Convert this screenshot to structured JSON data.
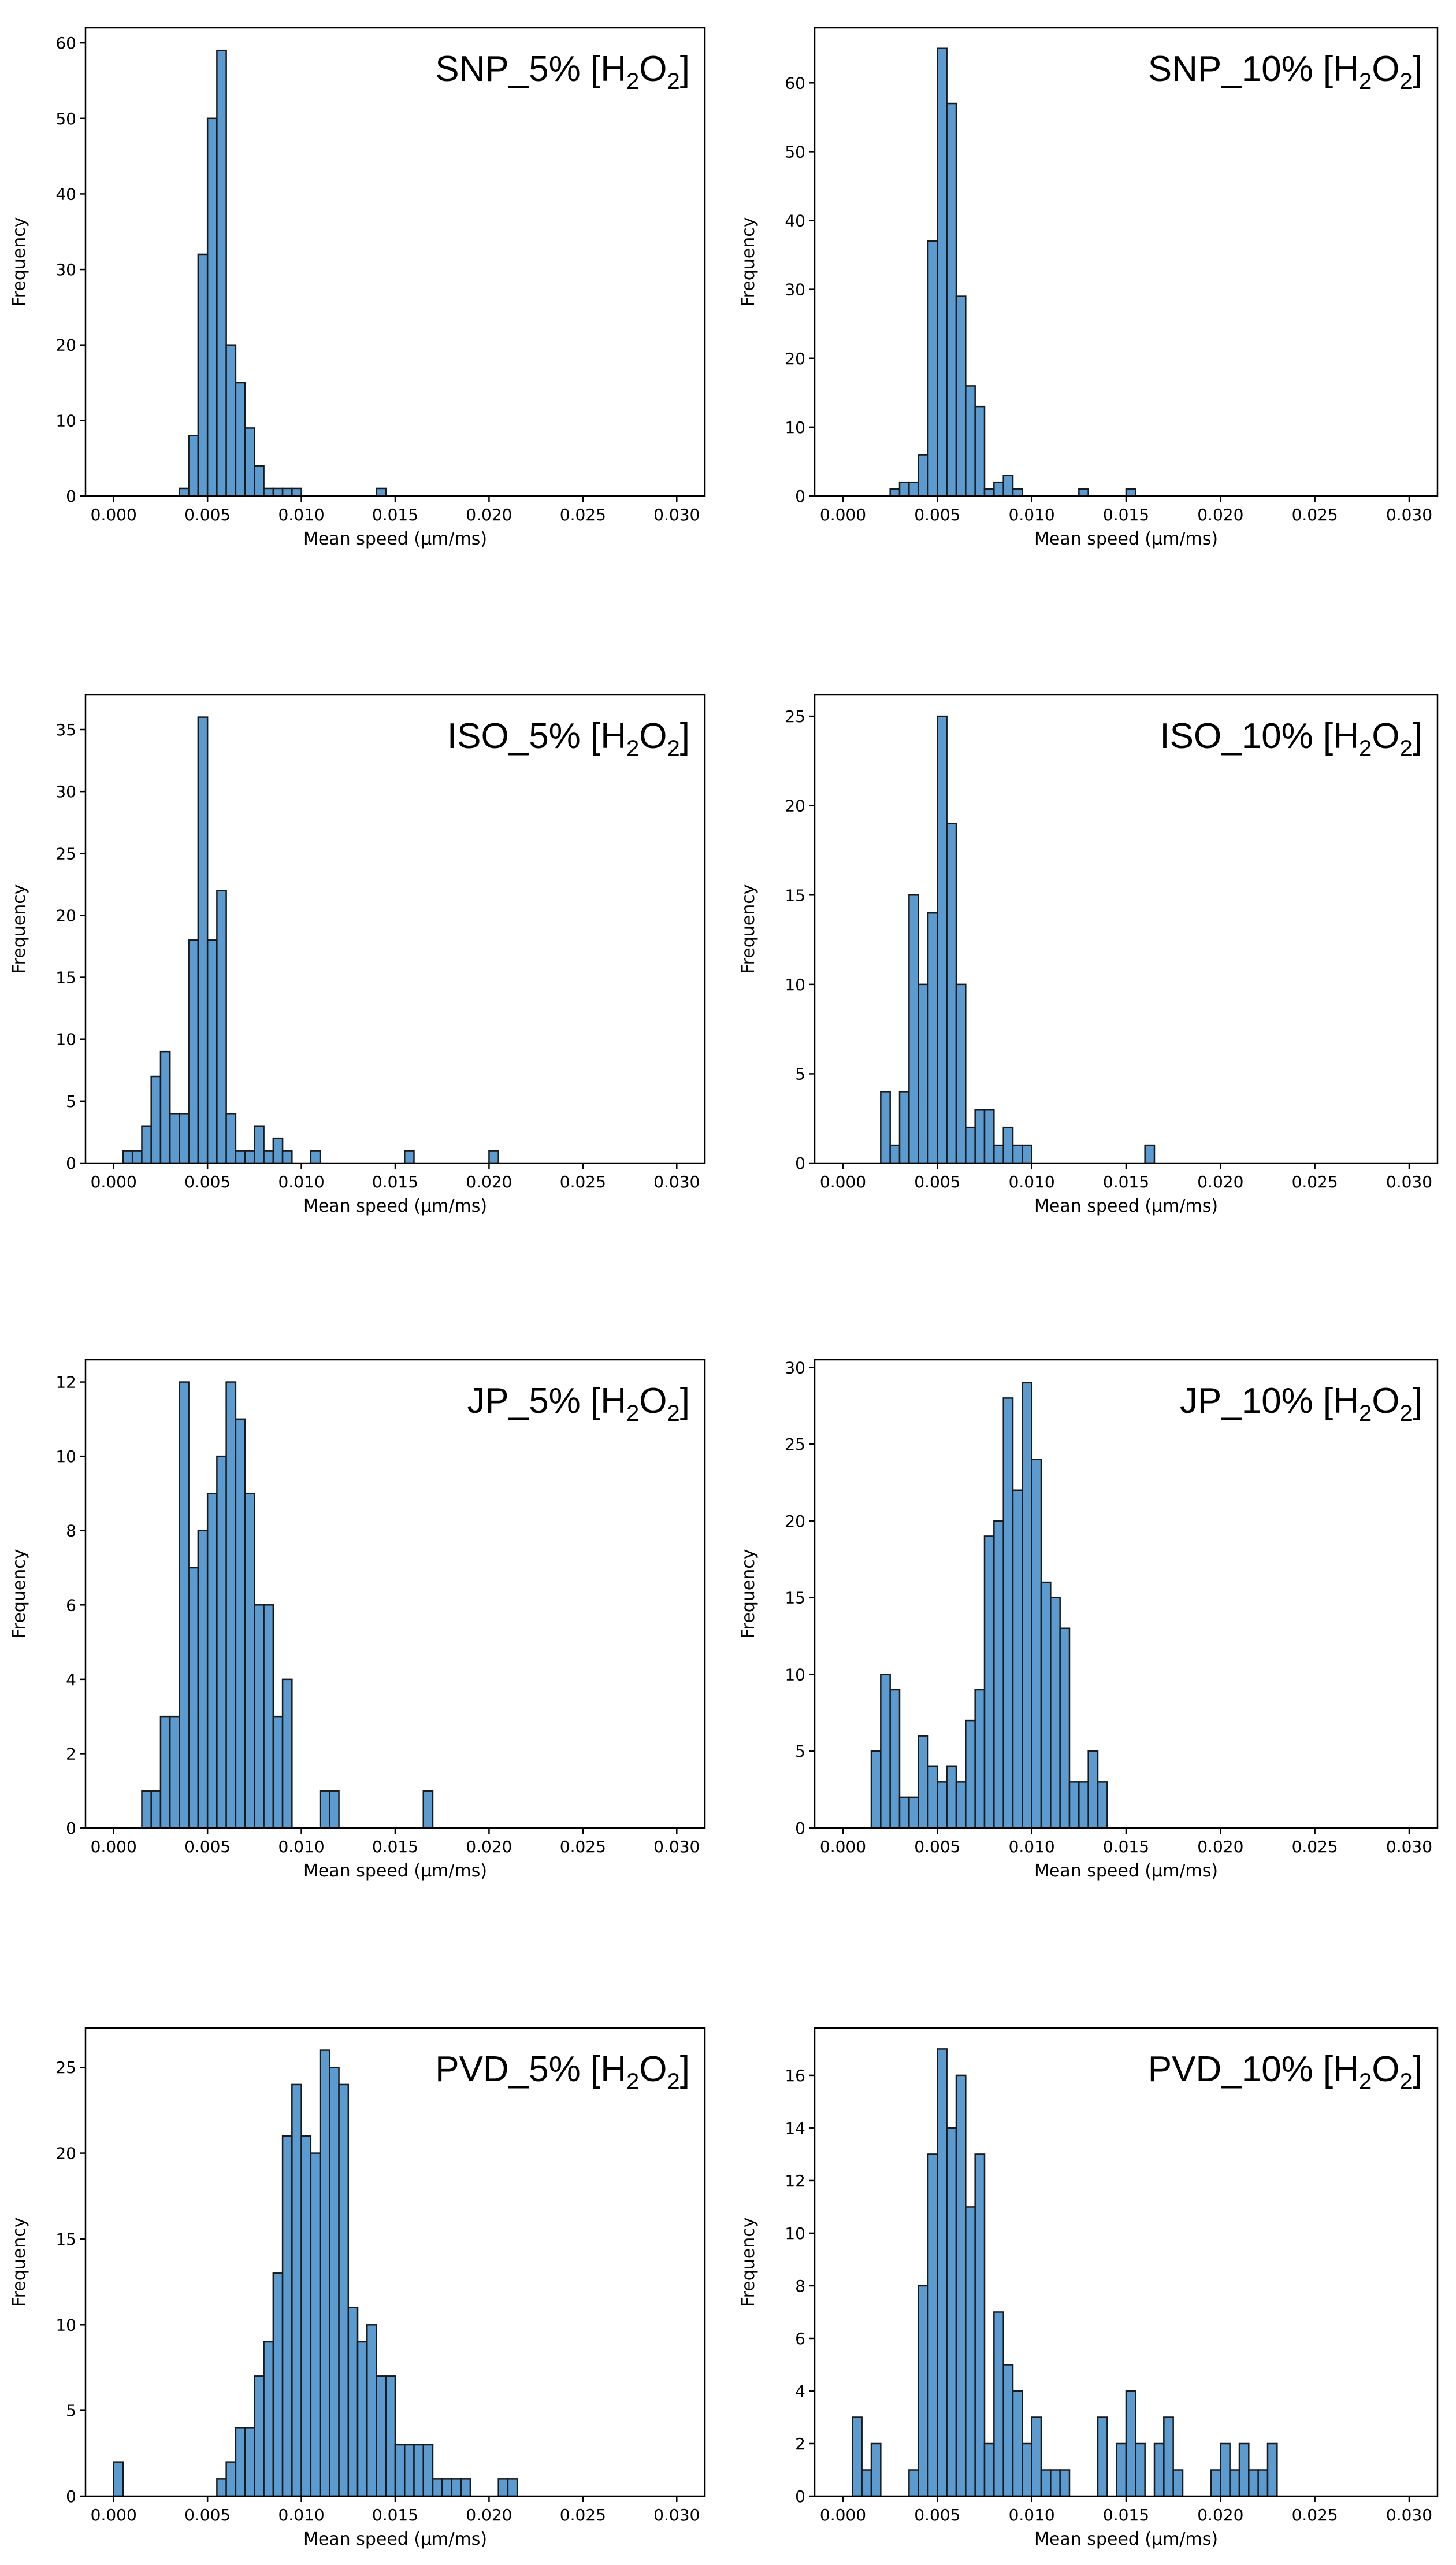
{
  "figure": {
    "colors": {
      "bar_fill": "#5b9bd0",
      "bar_edge": "#1a1a1a"
    }
  },
  "chart_data": [
    {
      "type": "bar",
      "panel": "SNP_5%",
      "title": {
        "main": "SNP_5% [H",
        "sub1": "2",
        "mid": "O",
        "sub2": "2",
        "end": "]"
      },
      "xlabel": "Mean speed (μm/ms)",
      "ylabel": "Frequency",
      "xlim": [
        -0.0015,
        0.0315
      ],
      "ylim": [
        0,
        62
      ],
      "xticks": [
        0.0,
        0.005,
        0.01,
        0.015,
        0.02,
        0.025,
        0.03
      ],
      "xtick_labels": [
        "0.000",
        "0.005",
        "0.010",
        "0.015",
        "0.020",
        "0.025",
        "0.030"
      ],
      "yticks": [
        0,
        10,
        20,
        30,
        40,
        50,
        60
      ],
      "bin_width": 0.0005,
      "bin_starts": [
        0.0035,
        0.004,
        0.0045,
        0.005,
        0.0055,
        0.006,
        0.0065,
        0.007,
        0.0075,
        0.008,
        0.0085,
        0.009,
        0.0095,
        0.01,
        0.014
      ],
      "values": [
        1,
        8,
        32,
        50,
        59,
        20,
        15,
        9,
        4,
        1,
        1,
        1,
        1,
        0,
        1
      ]
    },
    {
      "type": "bar",
      "panel": "SNP_10%",
      "title": {
        "main": "SNP_10% [H",
        "sub1": "2",
        "mid": "O",
        "sub2": "2",
        "end": "]"
      },
      "xlabel": "Mean speed (μm/ms)",
      "ylabel": "Frequency",
      "xlim": [
        -0.0015,
        0.0315
      ],
      "ylim": [
        0,
        68
      ],
      "xticks": [
        0.0,
        0.005,
        0.01,
        0.015,
        0.02,
        0.025,
        0.03
      ],
      "xtick_labels": [
        "0.000",
        "0.005",
        "0.010",
        "0.015",
        "0.020",
        "0.025",
        "0.030"
      ],
      "yticks": [
        0,
        10,
        20,
        30,
        40,
        50,
        60
      ],
      "bin_width": 0.0005,
      "bin_starts": [
        0.0025,
        0.003,
        0.0035,
        0.004,
        0.0045,
        0.005,
        0.0055,
        0.006,
        0.0065,
        0.007,
        0.0075,
        0.008,
        0.0085,
        0.009,
        0.0095,
        0.01,
        0.0125,
        0.015
      ],
      "values": [
        1,
        2,
        2,
        6,
        37,
        65,
        57,
        29,
        16,
        13,
        1,
        2,
        3,
        1,
        0,
        0,
        1,
        1
      ]
    },
    {
      "type": "bar",
      "panel": "ISO_5%",
      "title": {
        "main": "ISO_5% [H",
        "sub1": "2",
        "mid": "O",
        "sub2": "2",
        "end": "]"
      },
      "xlabel": "Mean speed (μm/ms)",
      "ylabel": "Frequency",
      "xlim": [
        -0.0015,
        0.0315
      ],
      "ylim": [
        0,
        37.8
      ],
      "xticks": [
        0.0,
        0.005,
        0.01,
        0.015,
        0.02,
        0.025,
        0.03
      ],
      "xtick_labels": [
        "0.000",
        "0.005",
        "0.010",
        "0.015",
        "0.020",
        "0.025",
        "0.030"
      ],
      "yticks": [
        0,
        5,
        10,
        15,
        20,
        25,
        30,
        35
      ],
      "bin_width": 0.0005,
      "bin_starts": [
        0.0005,
        0.001,
        0.0015,
        0.002,
        0.0025,
        0.003,
        0.0035,
        0.004,
        0.0045,
        0.005,
        0.0055,
        0.006,
        0.0065,
        0.007,
        0.0075,
        0.008,
        0.0085,
        0.009,
        0.0095,
        0.0105,
        0.0155,
        0.02
      ],
      "values": [
        1,
        1,
        3,
        7,
        9,
        4,
        4,
        18,
        36,
        18,
        22,
        4,
        1,
        1,
        3,
        1,
        2,
        1,
        0,
        1,
        1,
        1
      ]
    },
    {
      "type": "bar",
      "panel": "ISO_10%",
      "title": {
        "main": "ISO_10% [H",
        "sub1": "2",
        "mid": "O",
        "sub2": "2",
        "end": "]"
      },
      "xlabel": "Mean speed (μm/ms)",
      "ylabel": "Frequency",
      "xlim": [
        -0.0015,
        0.0315
      ],
      "ylim": [
        0,
        26.2
      ],
      "xticks": [
        0.0,
        0.005,
        0.01,
        0.015,
        0.02,
        0.025,
        0.03
      ],
      "xtick_labels": [
        "0.000",
        "0.005",
        "0.010",
        "0.015",
        "0.020",
        "0.025",
        "0.030"
      ],
      "yticks": [
        0,
        5,
        10,
        15,
        20,
        25
      ],
      "bin_width": 0.0005,
      "bin_starts": [
        0.002,
        0.0025,
        0.003,
        0.0035,
        0.004,
        0.0045,
        0.005,
        0.0055,
        0.006,
        0.0065,
        0.007,
        0.0075,
        0.008,
        0.0085,
        0.009,
        0.0095,
        0.01,
        0.0105,
        0.016
      ],
      "values": [
        4,
        1,
        4,
        15,
        10,
        14,
        25,
        19,
        10,
        2,
        3,
        3,
        1,
        2,
        1,
        1,
        0,
        0,
        1
      ]
    },
    {
      "type": "bar",
      "panel": "JP_5%",
      "title": {
        "main": "JP_5% [H",
        "sub1": "2",
        "mid": "O",
        "sub2": "2",
        "end": "]"
      },
      "xlabel": "Mean speed (μm/ms)",
      "ylabel": "Frequency",
      "xlim": [
        -0.0015,
        0.0315
      ],
      "ylim": [
        0,
        12.6
      ],
      "xticks": [
        0.0,
        0.005,
        0.01,
        0.015,
        0.02,
        0.025,
        0.03
      ],
      "xtick_labels": [
        "0.000",
        "0.005",
        "0.010",
        "0.015",
        "0.020",
        "0.025",
        "0.030"
      ],
      "yticks": [
        0,
        2,
        4,
        6,
        8,
        10,
        12
      ],
      "bin_width": 0.0005,
      "bin_starts": [
        0.0015,
        0.002,
        0.0025,
        0.003,
        0.0035,
        0.004,
        0.0045,
        0.005,
        0.0055,
        0.006,
        0.0065,
        0.007,
        0.0075,
        0.008,
        0.0085,
        0.009,
        0.0095,
        0.011,
        0.0115,
        0.0165
      ],
      "values": [
        1,
        1,
        3,
        3,
        12,
        7,
        8,
        9,
        10,
        12,
        11,
        9,
        6,
        6,
        3,
        4,
        0,
        1,
        1,
        1
      ]
    },
    {
      "type": "bar",
      "panel": "JP_10%",
      "title": {
        "main": "JP_10% [H",
        "sub1": "2",
        "mid": "O",
        "sub2": "2",
        "end": "]"
      },
      "xlabel": "Mean speed (μm/ms)",
      "ylabel": "Frequency",
      "xlim": [
        -0.0015,
        0.0315
      ],
      "ylim": [
        0,
        30.5
      ],
      "xticks": [
        0.0,
        0.005,
        0.01,
        0.015,
        0.02,
        0.025,
        0.03
      ],
      "xtick_labels": [
        "0.000",
        "0.005",
        "0.010",
        "0.015",
        "0.020",
        "0.025",
        "0.030"
      ],
      "yticks": [
        0,
        5,
        10,
        15,
        20,
        25,
        30
      ],
      "bin_width": 0.0005,
      "bin_starts": [
        0.0015,
        0.002,
        0.0025,
        0.003,
        0.0035,
        0.004,
        0.0045,
        0.005,
        0.0055,
        0.006,
        0.0065,
        0.007,
        0.0075,
        0.008,
        0.0085,
        0.009,
        0.0095,
        0.01,
        0.0105,
        0.011,
        0.0115,
        0.012,
        0.0125,
        0.013,
        0.0135,
        0.014,
        0.0145,
        0.015,
        0.0155
      ],
      "values": [
        5,
        10,
        9,
        2,
        2,
        6,
        4,
        3,
        4,
        3,
        7,
        9,
        19,
        20,
        28,
        22,
        29,
        24,
        16,
        15,
        13,
        3,
        3,
        5,
        3,
        0,
        0,
        0,
        0
      ]
    },
    {
      "type": "bar",
      "panel": "PVD_5%",
      "title": {
        "main": "PVD_5% [H",
        "sub1": "2",
        "mid": "O",
        "sub2": "2",
        "end": "]"
      },
      "xlabel": "Mean speed (μm/ms)",
      "ylabel": "Frequency",
      "xlim": [
        -0.0015,
        0.0315
      ],
      "ylim": [
        0,
        27.3
      ],
      "xticks": [
        0.0,
        0.005,
        0.01,
        0.015,
        0.02,
        0.025,
        0.03
      ],
      "xtick_labels": [
        "0.000",
        "0.005",
        "0.010",
        "0.015",
        "0.020",
        "0.025",
        "0.030"
      ],
      "yticks": [
        0,
        5,
        10,
        15,
        20,
        25
      ],
      "bin_width": 0.0005,
      "bin_starts": [
        0.0,
        0.0055,
        0.006,
        0.0065,
        0.007,
        0.0075,
        0.008,
        0.0085,
        0.009,
        0.0095,
        0.01,
        0.0105,
        0.011,
        0.0115,
        0.012,
        0.0125,
        0.013,
        0.0135,
        0.014,
        0.0145,
        0.015,
        0.0155,
        0.016,
        0.0165,
        0.017,
        0.0175,
        0.018,
        0.0185,
        0.0205,
        0.021
      ],
      "values": [
        2,
        1,
        2,
        4,
        4,
        7,
        9,
        13,
        21,
        24,
        21,
        20,
        26,
        25,
        24,
        11,
        9,
        10,
        7,
        7,
        3,
        3,
        3,
        3,
        1,
        1,
        1,
        1,
        1,
        1
      ]
    },
    {
      "type": "bar",
      "panel": "PVD_10%",
      "title": {
        "main": "PVD_10% [H",
        "sub1": "2",
        "mid": "O",
        "sub2": "2",
        "end": "]"
      },
      "xlabel": "Mean speed (μm/ms)",
      "ylabel": "Frequency",
      "xlim": [
        -0.0015,
        0.0315
      ],
      "ylim": [
        0,
        17.8
      ],
      "xticks": [
        0.0,
        0.005,
        0.01,
        0.015,
        0.02,
        0.025,
        0.03
      ],
      "xtick_labels": [
        "0.000",
        "0.005",
        "0.010",
        "0.015",
        "0.020",
        "0.025",
        "0.030"
      ],
      "yticks": [
        0,
        2,
        4,
        6,
        8,
        10,
        12,
        14,
        16
      ],
      "bin_width": 0.0005,
      "bin_starts": [
        0.0005,
        0.001,
        0.0015,
        0.0035,
        0.004,
        0.0045,
        0.005,
        0.0055,
        0.006,
        0.0065,
        0.007,
        0.0075,
        0.008,
        0.0085,
        0.009,
        0.0095,
        0.01,
        0.0105,
        0.011,
        0.0115,
        0.0135,
        0.0145,
        0.015,
        0.0155,
        0.0165,
        0.017,
        0.0175,
        0.0195,
        0.02,
        0.0205,
        0.021,
        0.0215,
        0.022,
        0.0225
      ],
      "values": [
        3,
        1,
        2,
        1,
        8,
        13,
        17,
        14,
        16,
        11,
        13,
        2,
        7,
        5,
        4,
        2,
        3,
        1,
        1,
        1,
        3,
        2,
        4,
        2,
        2,
        3,
        1,
        1,
        2,
        1,
        2,
        1,
        1,
        2
      ]
    }
  ]
}
